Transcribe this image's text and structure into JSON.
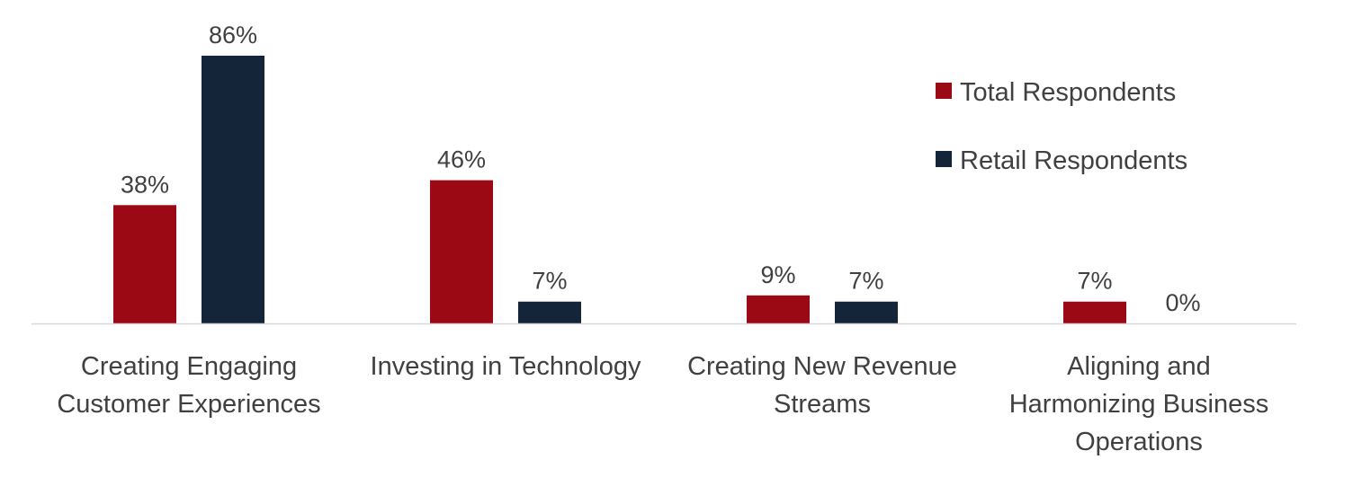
{
  "chart_data": {
    "type": "bar",
    "title": "",
    "xlabel": "",
    "ylabel": "",
    "ylim": [
      0,
      86
    ],
    "grid": false,
    "legend_position": "top-right",
    "categories": [
      [
        "Creating Engaging",
        "Customer Experiences"
      ],
      [
        "Investing in Technology"
      ],
      [
        "Creating New Revenue",
        "Streams"
      ],
      [
        "Aligning and",
        "Harmonizing Business",
        "Operations"
      ]
    ],
    "series": [
      {
        "name": "Total Respondents",
        "color": "#9B0A14",
        "values": [
          38,
          46,
          9,
          7
        ],
        "labels": [
          "38%",
          "46%",
          "9%",
          "7%"
        ]
      },
      {
        "name": "Retail Respondents",
        "color": "#14253A",
        "values": [
          86,
          7,
          7,
          0
        ],
        "labels": [
          "86%",
          "7%",
          "7%",
          "0%"
        ]
      }
    ]
  }
}
